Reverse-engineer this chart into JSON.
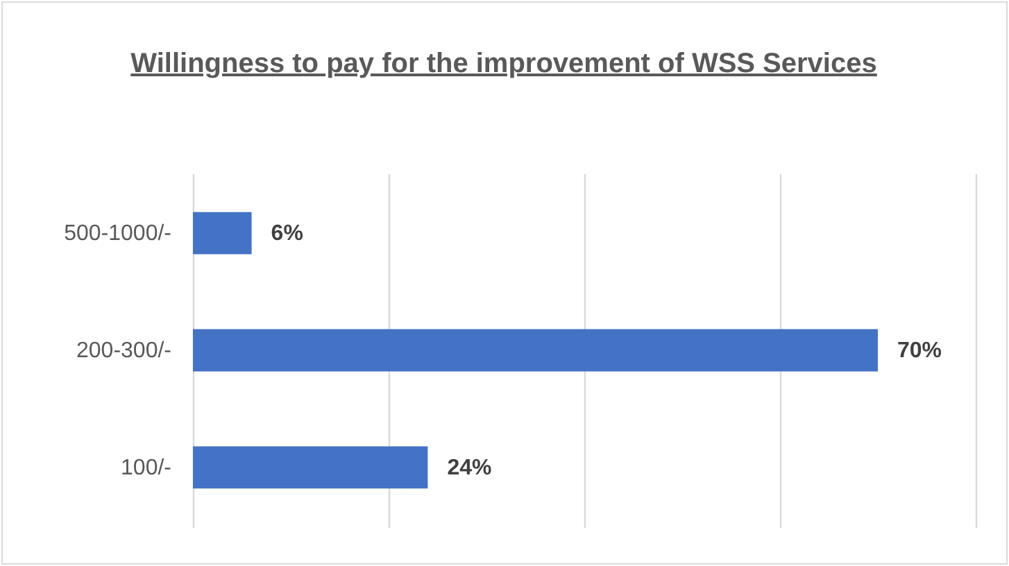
{
  "chart_data": {
    "type": "bar",
    "orientation": "horizontal",
    "title": "Willingness to pay for the improvement of WSS Services",
    "categories": [
      "500-1000/-",
      "200-300/-",
      "100/-"
    ],
    "values": [
      6,
      70,
      24
    ],
    "color": "#4472c4",
    "value_labels": [
      "6%",
      "70%",
      "24%"
    ],
    "xlim": [
      0,
      80
    ],
    "xticks": [
      {
        "value": 0,
        "label": null
      },
      {
        "value": 20,
        "label": null
      },
      {
        "value": 40,
        "label": null
      },
      {
        "value": 60,
        "label": null
      },
      {
        "value": 80,
        "label": null
      }
    ],
    "grid": "x",
    "tick_labels": "y"
  }
}
